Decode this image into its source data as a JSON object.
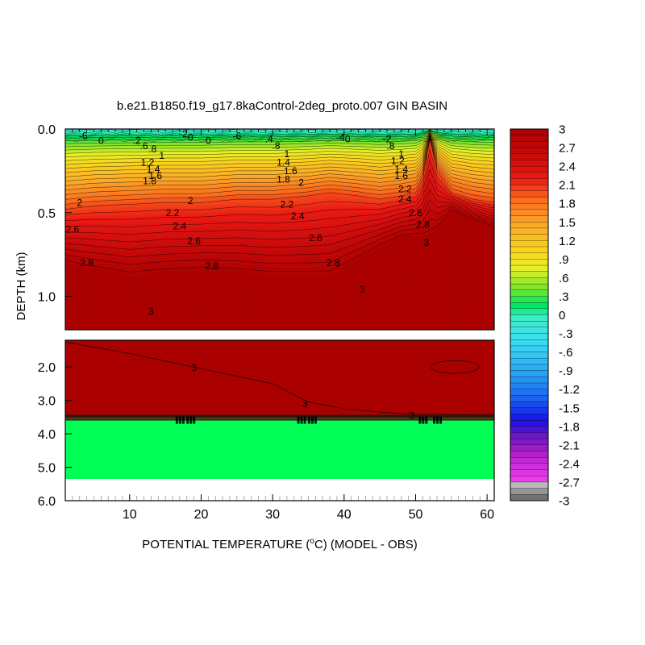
{
  "chart_data": {
    "type": "heatmap",
    "title": "b.e21.B1850.f19_g17.8kaControl-2deg_proto.007 GIN BASIN",
    "xlabel": "POTENTIAL TEMPERATURE (",
    "xlabel_super": "o",
    "xlabel_tail": "C) (MODEL - OBS)",
    "ylabel": "DEPTH (km)",
    "xlim": [
      1,
      61
    ],
    "x_ticks": [
      "10",
      "20",
      "30",
      "40",
      "50",
      "60"
    ],
    "x_tick_values": [
      10,
      20,
      30,
      40,
      50,
      60
    ],
    "upper_panel": {
      "ylim": [
        0.0,
        1.2
      ],
      "y_ticks": [
        "0.0",
        "0.5",
        "1.0"
      ],
      "y_tick_values": [
        0.0,
        0.5,
        1.0
      ]
    },
    "lower_panel": {
      "ylim": [
        1.2,
        6.0
      ],
      "y_ticks": [
        "2.0",
        "3.0",
        "4.0",
        "5.0",
        "6.0"
      ],
      "y_tick_values": [
        2.0,
        3.0,
        4.0,
        5.0,
        6.0
      ]
    },
    "colorbar": {
      "range": [
        -3,
        3
      ],
      "step": 0.1,
      "labels": [
        "3",
        "2.7",
        "2.4",
        "2.1",
        "1.8",
        "1.5",
        "1.2",
        ".9",
        ".6",
        ".3",
        "0",
        "-.3",
        "-.6",
        "-.9",
        "-1.2",
        "-1.5",
        "-1.8",
        "-2.1",
        "-2.4",
        "-2.7",
        "-3"
      ],
      "label_values": [
        3,
        2.7,
        2.4,
        2.1,
        1.8,
        1.5,
        1.2,
        0.9,
        0.6,
        0.3,
        0,
        -0.3,
        -0.6,
        -0.9,
        -1.2,
        -1.5,
        -1.8,
        -2.1,
        -2.4,
        -2.7,
        -3
      ]
    },
    "field": {
      "surface_value": -0.3,
      "deep_value": 3.0,
      "lower_panel_value": 3.0,
      "bottom_layer_value": 0.3,
      "bottom_layer_top_km": 3.6,
      "bottom_layer_bottom_km": 5.35,
      "profile_x": [
        1,
        5,
        10,
        15,
        20,
        25,
        30,
        35,
        38,
        42,
        45,
        48,
        50,
        51,
        52,
        53,
        55,
        58,
        61
      ],
      "depth_of_2C_km": [
        0.48,
        0.46,
        0.45,
        0.44,
        0.44,
        0.42,
        0.42,
        0.4,
        0.38,
        0.4,
        0.42,
        0.4,
        0.38,
        0.3,
        0.06,
        0.25,
        0.38,
        0.42,
        0.44
      ],
      "depth_of_3C_km": [
        0.82,
        0.86,
        0.9,
        0.88,
        0.87,
        0.88,
        0.9,
        0.9,
        0.9,
        0.8,
        0.72,
        0.66,
        0.65,
        0.66,
        0.66,
        0.62,
        0.5,
        0.55,
        0.6
      ]
    },
    "contour_labels": [
      {
        "text": "-6",
        "x": 3.5,
        "y": 0.04
      },
      {
        "text": "0",
        "x": 6.0,
        "y": 0.07
      },
      {
        "text": ".2",
        "x": 11.0,
        "y": 0.07
      },
      {
        "text": ".6",
        "x": 12.0,
        "y": 0.1
      },
      {
        "text": ".8",
        "x": 13.2,
        "y": 0.12
      },
      {
        "text": "1",
        "x": 14.5,
        "y": 0.16
      },
      {
        "text": "1.2",
        "x": 12.5,
        "y": 0.2
      },
      {
        "text": "1.4",
        "x": 13.3,
        "y": 0.24
      },
      {
        "text": "1.6",
        "x": 13.6,
        "y": 0.28
      },
      {
        "text": "1.8",
        "x": 12.8,
        "y": 0.31
      },
      {
        "text": "-2",
        "x": 17.5,
        "y": 0.03
      },
      {
        "text": "0",
        "x": 18.5,
        "y": 0.05
      },
      {
        "text": "0",
        "x": 21.0,
        "y": 0.07
      },
      {
        "text": "-6",
        "x": 25.0,
        "y": 0.04
      },
      {
        "text": ".4",
        "x": 29.5,
        "y": 0.06
      },
      {
        "text": ".8",
        "x": 30.5,
        "y": 0.1
      },
      {
        "text": "1",
        "x": 32.0,
        "y": 0.15
      },
      {
        "text": "1.4",
        "x": 31.5,
        "y": 0.2
      },
      {
        "text": "1.6",
        "x": 32.5,
        "y": 0.25
      },
      {
        "text": "1.8",
        "x": 31.5,
        "y": 0.3
      },
      {
        "text": "2",
        "x": 34.0,
        "y": 0.32
      },
      {
        "text": "-4",
        "x": 39.5,
        "y": 0.05
      },
      {
        "text": "0",
        "x": 40.5,
        "y": 0.06
      },
      {
        "text": "-2",
        "x": 46.0,
        "y": 0.06
      },
      {
        "text": ".8",
        "x": 46.5,
        "y": 0.1
      },
      {
        "text": "1",
        "x": 48.0,
        "y": 0.15
      },
      {
        "text": "1.2",
        "x": 47.5,
        "y": 0.19
      },
      {
        "text": "1.4",
        "x": 48.0,
        "y": 0.24
      },
      {
        "text": "1.6",
        "x": 48.0,
        "y": 0.28
      },
      {
        "text": "2",
        "x": 3.0,
        "y": 0.44
      },
      {
        "text": "2",
        "x": 18.5,
        "y": 0.43
      },
      {
        "text": "2.2",
        "x": 16.0,
        "y": 0.5
      },
      {
        "text": "2.4",
        "x": 17.0,
        "y": 0.58
      },
      {
        "text": "2.6",
        "x": 2.0,
        "y": 0.6
      },
      {
        "text": "2.6",
        "x": 19.0,
        "y": 0.67
      },
      {
        "text": "2.8",
        "x": 4.0,
        "y": 0.8
      },
      {
        "text": "2.8",
        "x": 21.5,
        "y": 0.82
      },
      {
        "text": "2.2",
        "x": 32.0,
        "y": 0.45
      },
      {
        "text": "2.4",
        "x": 33.5,
        "y": 0.52
      },
      {
        "text": "2.6",
        "x": 36.0,
        "y": 0.65
      },
      {
        "text": "2.8",
        "x": 38.5,
        "y": 0.8
      },
      {
        "text": "2.2",
        "x": 48.5,
        "y": 0.36
      },
      {
        "text": "2.4",
        "x": 48.5,
        "y": 0.42
      },
      {
        "text": "2.6",
        "x": 50.0,
        "y": 0.5
      },
      {
        "text": "2.8",
        "x": 51.0,
        "y": 0.57
      },
      {
        "text": "3",
        "x": 51.5,
        "y": 0.68
      },
      {
        "text": "3",
        "x": 42.5,
        "y": 0.96
      },
      {
        "text": "3",
        "x": 13.0,
        "y": 1.09
      },
      {
        "text": "3",
        "x": 19.0,
        "y": 2.02
      },
      {
        "text": "3",
        "x": 34.5,
        "y": 3.1
      },
      {
        "text": "3",
        "x": 49.5,
        "y": 3.45
      }
    ]
  }
}
